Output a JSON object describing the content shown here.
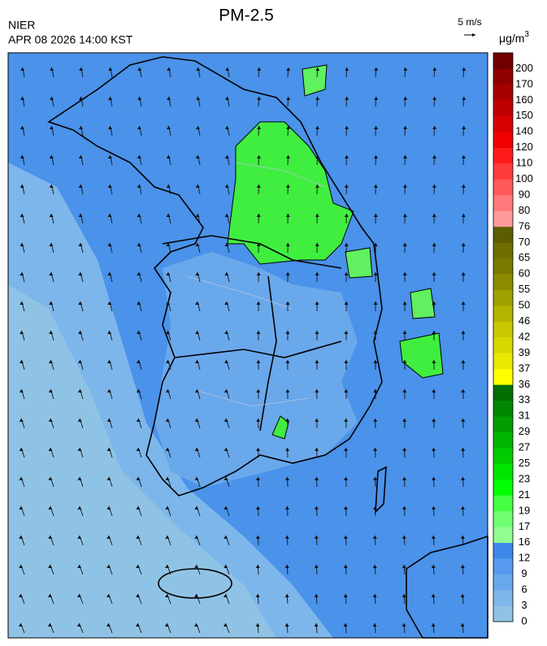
{
  "title": "PM-2.5",
  "agency": "NIER",
  "timestamp": "APR 08 2026 14:00 KST",
  "wind_reference": "5 m/s",
  "unit": {
    "base": "μg/m",
    "exponent": "3"
  },
  "colorbar": {
    "labels": [
      0,
      3,
      6,
      9,
      12,
      16,
      17,
      19,
      21,
      23,
      25,
      27,
      29,
      31,
      33,
      36,
      37,
      39,
      42,
      46,
      50,
      55,
      60,
      65,
      70,
      76,
      80,
      90,
      100,
      110,
      120,
      140,
      150,
      160,
      170,
      200
    ],
    "colors": [
      "#8fc3e6",
      "#7db6ea",
      "#6aa8ec",
      "#5799ee",
      "#3d87ea",
      "#90ff90",
      "#70ff70",
      "#44ff44",
      "#00ff00",
      "#00e600",
      "#00cc00",
      "#00b400",
      "#009c00",
      "#008600",
      "#006e00",
      "#ffff00",
      "#e8e800",
      "#d8d800",
      "#c8c800",
      "#b4b400",
      "#a0a000",
      "#8c8c00",
      "#7a7a00",
      "#6e6e00",
      "#5c5c00",
      "#ff9a9a",
      "#ff7a7a",
      "#ff5a5a",
      "#ff3a3a",
      "#ff1a1a",
      "#f00000",
      "#d80000",
      "#c00000",
      "#a80000",
      "#900000",
      "#700000"
    ]
  }
}
